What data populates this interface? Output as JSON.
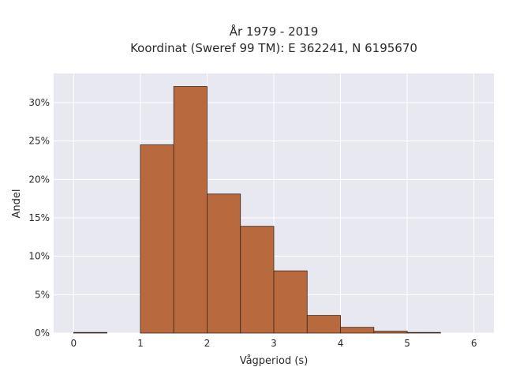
{
  "chart_data": {
    "type": "bar",
    "title": [
      "År 1979 - 2019",
      "Koordinat (Sweref 99 TM): E 362241, N 6195670"
    ],
    "xlabel": "Vågperiod (s)",
    "ylabel": "Andel",
    "bin_width": 0.5,
    "bins": [
      {
        "x0": 0.0,
        "x1": 0.5,
        "value": 0.05
      },
      {
        "x0": 0.5,
        "x1": 1.0,
        "value": 0.0
      },
      {
        "x0": 1.0,
        "x1": 1.5,
        "value": 24.5
      },
      {
        "x0": 1.5,
        "x1": 2.0,
        "value": 32.1
      },
      {
        "x0": 2.0,
        "x1": 2.5,
        "value": 18.1
      },
      {
        "x0": 2.5,
        "x1": 3.0,
        "value": 13.9
      },
      {
        "x0": 3.0,
        "x1": 3.5,
        "value": 8.1
      },
      {
        "x0": 3.5,
        "x1": 4.0,
        "value": 2.3
      },
      {
        "x0": 4.0,
        "x1": 4.5,
        "value": 0.75
      },
      {
        "x0": 4.5,
        "x1": 5.0,
        "value": 0.25
      },
      {
        "x0": 5.0,
        "x1": 5.5,
        "value": 0.05
      }
    ],
    "xticks": [
      0,
      1,
      2,
      3,
      4,
      5,
      6
    ],
    "xtick_labels": [
      "0",
      "1",
      "2",
      "3",
      "4",
      "5",
      "6"
    ],
    "yticks": [
      0,
      5,
      10,
      15,
      20,
      25,
      30
    ],
    "ytick_labels": [
      "0%",
      "5%",
      "10%",
      "15%",
      "20%",
      "25%",
      "30%"
    ],
    "xlim": [
      -0.3,
      6.3
    ],
    "ylim": [
      0,
      33.8
    ],
    "grid": true,
    "colors": {
      "bar_fill": "#b8693d",
      "bar_stroke": "#3a2a1c",
      "plot_bg": "#e8e8f1",
      "grid": "#ffffff"
    }
  }
}
